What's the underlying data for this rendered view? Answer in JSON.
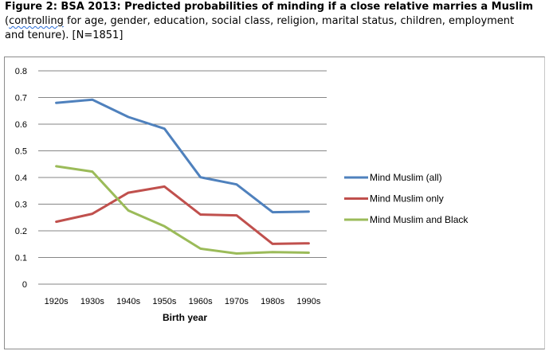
{
  "caption": {
    "title": "Figure 2: BSA 2013: Predicted probabilities of minding if a close relative marries a Muslim",
    "line2_open": "(",
    "line2_squiggle": "controlling",
    "line2_rest": " for age, gender, education,  social class, religion, marital status, children, employment",
    "line3": "and tenure).  [N=1851]"
  },
  "chart_data": {
    "type": "line",
    "categories": [
      "1920s",
      "1930s",
      "1940s",
      "1950s",
      "1960s",
      "1970s",
      "1980s",
      "1990s"
    ],
    "series": [
      {
        "name": "Mind Muslim (all)",
        "color": "#4f81bd",
        "values": [
          0.68,
          0.692,
          0.627,
          0.583,
          0.401,
          0.374,
          0.27,
          0.272
        ]
      },
      {
        "name": "Mind Muslim only",
        "color": "#c0504d",
        "values": [
          0.234,
          0.264,
          0.343,
          0.366,
          0.261,
          0.258,
          0.151,
          0.153
        ]
      },
      {
        "name": "Mind Muslim and Black",
        "color": "#9bbb59",
        "values": [
          0.442,
          0.422,
          0.276,
          0.217,
          0.133,
          0.115,
          0.12,
          0.118
        ]
      }
    ],
    "yticks": [
      "0",
      "0.1",
      "0.2",
      "0.3",
      "0.4",
      "0.5",
      "0.6",
      "0.7",
      "0.8"
    ],
    "ylim": [
      0,
      0.8
    ],
    "xlabel": "Birth year",
    "ylabel": "",
    "grid": true,
    "legend_position": "right"
  }
}
